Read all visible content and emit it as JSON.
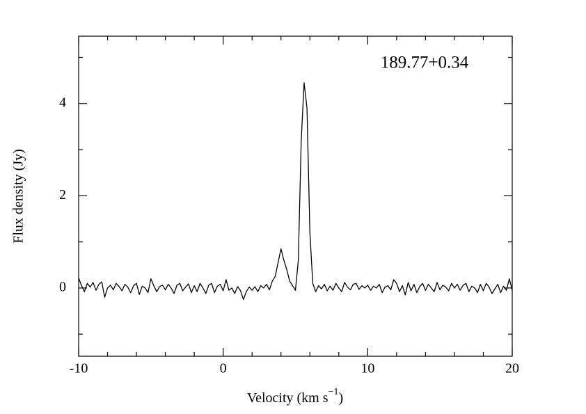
{
  "chart_data": {
    "type": "line",
    "annotation": "189.77+0.34",
    "xlabel": [
      "Velocity (km s",
      "−1",
      ")"
    ],
    "ylabel": "Flux density (Jy)",
    "color": "#000000",
    "xlim": [
      -10,
      20
    ],
    "ylim": [
      -1.48,
      5.46
    ],
    "xticks": [
      -10,
      0,
      10,
      20
    ],
    "yticks": [
      0,
      2,
      4
    ],
    "xticks_minor": [
      -8,
      -6,
      -4,
      -2,
      2,
      4,
      6,
      8,
      12,
      14,
      16,
      18
    ],
    "yticks_minor": [
      -1,
      1,
      3,
      5
    ],
    "x": [
      -10,
      -9.8,
      -9.6,
      -9.4,
      -9.2,
      -9,
      -8.8,
      -8.6,
      -8.4,
      -8.2,
      -8,
      -7.8,
      -7.6,
      -7.4,
      -7.2,
      -7,
      -6.8,
      -6.6,
      -6.4,
      -6.2,
      -6,
      -5.8,
      -5.6,
      -5.4,
      -5.2,
      -5,
      -4.8,
      -4.6,
      -4.4,
      -4.2,
      -4,
      -3.8,
      -3.6,
      -3.4,
      -3.2,
      -3,
      -2.8,
      -2.6,
      -2.4,
      -2.2,
      -2,
      -1.8,
      -1.6,
      -1.4,
      -1.2,
      -1,
      -0.8,
      -0.6,
      -0.4,
      -0.2,
      0,
      0.2,
      0.4,
      0.6,
      0.8,
      1,
      1.2,
      1.4,
      1.6,
      1.8,
      2,
      2.2,
      2.4,
      2.6,
      2.8,
      3,
      3.2,
      3.4,
      3.6,
      3.8,
      4,
      4.2,
      4.4,
      4.6,
      4.8,
      5,
      5.2,
      5.4,
      5.6,
      5.8,
      6,
      6.2,
      6.4,
      6.6,
      6.8,
      7,
      7.2,
      7.4,
      7.6,
      7.8,
      8,
      8.2,
      8.4,
      8.6,
      8.8,
      9,
      9.2,
      9.4,
      9.6,
      9.8,
      10,
      10.2,
      10.4,
      10.6,
      10.8,
      11,
      11.2,
      11.4,
      11.6,
      11.8,
      12,
      12.2,
      12.4,
      12.6,
      12.8,
      13,
      13.2,
      13.4,
      13.6,
      13.8,
      14,
      14.2,
      14.4,
      14.6,
      14.8,
      15,
      15.2,
      15.4,
      15.6,
      15.8,
      16,
      16.2,
      16.4,
      16.6,
      16.8,
      17,
      17.2,
      17.4,
      17.6,
      17.8,
      18,
      18.2,
      18.4,
      18.6,
      18.8,
      19,
      19.2,
      19.4,
      19.6,
      19.8,
      20
    ],
    "values": [
      0.22,
      0.05,
      -0.08,
      0.1,
      0.02,
      0.12,
      -0.05,
      0.08,
      0.13,
      -0.2,
      0.0,
      0.06,
      -0.04,
      0.1,
      0.03,
      -0.06,
      0.08,
      0.02,
      -0.1,
      0.05,
      0.1,
      -0.14,
      0.04,
      0.0,
      -0.1,
      0.2,
      0.05,
      -0.08,
      0.03,
      0.06,
      -0.04,
      0.08,
      0.0,
      -0.12,
      0.06,
      0.1,
      -0.06,
      0.02,
      0.09,
      -0.1,
      0.05,
      -0.08,
      0.1,
      0.0,
      -0.12,
      0.06,
      0.1,
      -0.1,
      0.04,
      0.08,
      -0.06,
      0.18,
      -0.05,
      0.0,
      -0.12,
      0.03,
      -0.06,
      -0.25,
      -0.08,
      0.02,
      -0.05,
      0.03,
      -0.08,
      0.05,
      0.0,
      0.08,
      -0.04,
      0.15,
      0.25,
      0.55,
      0.85,
      0.6,
      0.4,
      0.15,
      0.05,
      -0.05,
      0.6,
      3.2,
      4.45,
      3.9,
      1.2,
      0.1,
      -0.08,
      0.05,
      -0.02,
      0.08,
      -0.06,
      0.04,
      -0.05,
      0.1,
      0.0,
      -0.08,
      0.12,
      0.02,
      -0.04,
      0.08,
      0.1,
      -0.03,
      0.05,
      0.0,
      0.06,
      -0.05,
      0.04,
      0.0,
      0.08,
      -0.1,
      0.02,
      0.05,
      -0.04,
      0.18,
      0.1,
      -0.08,
      0.05,
      -0.15,
      0.12,
      -0.06,
      0.08,
      -0.1,
      0.03,
      0.1,
      -0.05,
      0.08,
      0.0,
      -0.08,
      0.12,
      -0.04,
      0.06,
      0.02,
      -0.06,
      0.1,
      0.0,
      0.08,
      -0.05,
      0.06,
      0.1,
      -0.08,
      0.04,
      0.0,
      -0.1,
      0.08,
      -0.06,
      0.1,
      0.02,
      -0.12,
      -0.02,
      0.08,
      -0.1,
      0.04,
      -0.05,
      0.2,
      -0.05
    ]
  }
}
